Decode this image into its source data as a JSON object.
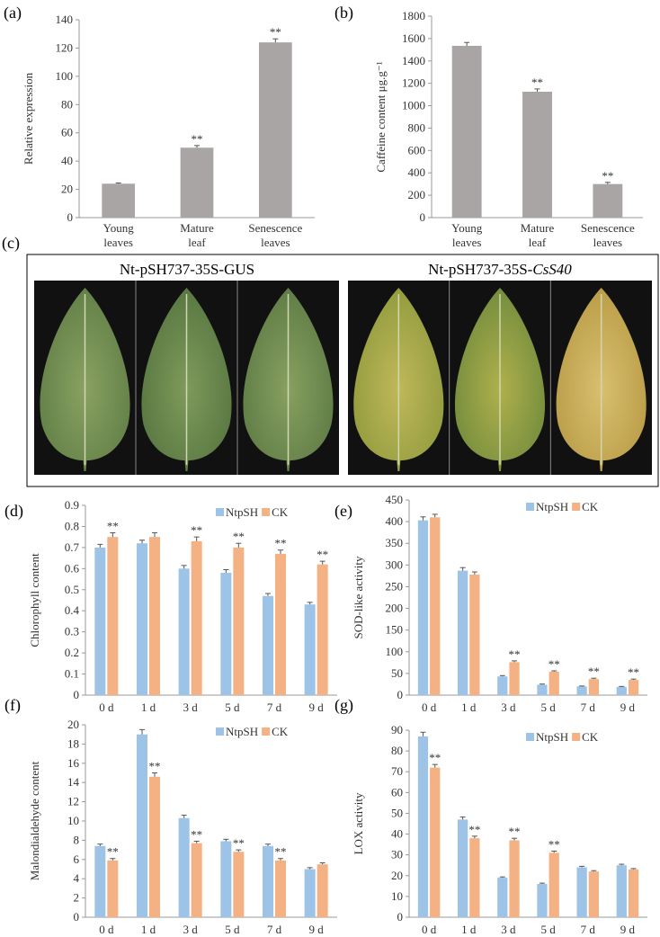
{
  "chart_data": [
    {
      "type": "bar",
      "panel_label": "(a)",
      "ylabel": "Relative expression",
      "categories": [
        [
          "Young",
          "leaves"
        ],
        [
          "Mature",
          "leaf"
        ],
        [
          "Senescence",
          "leaves"
        ]
      ],
      "values": [
        24,
        49.5,
        124
      ],
      "errors": [
        0.5,
        1.5,
        2.5
      ],
      "annotations": [
        null,
        "**",
        "**"
      ],
      "color": "#a9a5a5",
      "ylim": [
        0,
        140
      ],
      "yticks": [
        0,
        20,
        40,
        60,
        80,
        100,
        120,
        140
      ]
    },
    {
      "type": "bar",
      "panel_label": "(b)",
      "ylabel": "Caffeine content μg.g⁻¹",
      "categories": [
        [
          "Young",
          "leaves"
        ],
        [
          "Mature",
          "leaf"
        ],
        [
          "Senescence",
          "leaves"
        ]
      ],
      "values": [
        1535,
        1125,
        300
      ],
      "errors": [
        30,
        25,
        15
      ],
      "annotations": [
        null,
        "**",
        "**"
      ],
      "color": "#a9a5a5",
      "ylim": [
        0,
        1800
      ],
      "yticks": [
        0,
        200,
        400,
        600,
        800,
        1000,
        1200,
        1400,
        1600,
        1800
      ]
    },
    {
      "type": "bar",
      "panel_label": "(d)",
      "ylabel": "Chlorophyll content",
      "legend": "top-right",
      "categories": [
        "0 d",
        "1 d",
        "3 d",
        "5 d",
        "7 d",
        "9 d"
      ],
      "series": [
        {
          "name": "NtpSH",
          "color": "#9dc3e6",
          "values": [
            0.7,
            0.72,
            0.6,
            0.58,
            0.47,
            0.43
          ],
          "errors": [
            0.015,
            0.015,
            0.015,
            0.015,
            0.012,
            0.01
          ],
          "annotations": [
            null,
            null,
            null,
            null,
            null,
            null
          ]
        },
        {
          "name": "CK",
          "color": "#f4b183",
          "values": [
            0.75,
            0.75,
            0.73,
            0.7,
            0.67,
            0.62
          ],
          "errors": [
            0.02,
            0.02,
            0.02,
            0.02,
            0.018,
            0.015
          ],
          "annotations": [
            "**",
            null,
            "**",
            "**",
            "**",
            "**"
          ]
        }
      ],
      "ylim": [
        0,
        0.9
      ],
      "yticks": [
        0,
        0.1,
        0.2,
        0.3,
        0.4,
        0.5,
        0.6,
        0.7,
        0.8,
        0.9
      ]
    },
    {
      "type": "bar",
      "panel_label": "(e)",
      "ylabel": "SOD-like activity",
      "legend": "top-right",
      "categories": [
        "0 d",
        "1 d",
        "3 d",
        "5 d",
        "7 d",
        "9 d"
      ],
      "series": [
        {
          "name": "NtpSH",
          "color": "#9dc3e6",
          "values": [
            403,
            287,
            43,
            24,
            20,
            19
          ],
          "errors": [
            8,
            7,
            2,
            1.5,
            1,
            1
          ],
          "annotations": [
            null,
            null,
            null,
            null,
            null,
            null
          ]
        },
        {
          "name": "CK",
          "color": "#f4b183",
          "values": [
            410,
            278,
            76,
            54,
            37,
            35
          ],
          "errors": [
            7,
            6,
            3,
            2,
            2,
            2
          ],
          "annotations": [
            null,
            null,
            "**",
            "**",
            "**",
            "**"
          ]
        }
      ],
      "ylim": [
        0,
        450
      ],
      "yticks": [
        0,
        50,
        100,
        150,
        200,
        250,
        300,
        350,
        400,
        450
      ]
    },
    {
      "type": "bar",
      "panel_label": "(f)",
      "ylabel": "Malondialdehyde content",
      "legend": "top-right",
      "categories": [
        "0 d",
        "1 d",
        "3 d",
        "5 d",
        "7 d",
        "9 d"
      ],
      "series": [
        {
          "name": "NtpSH",
          "color": "#9dc3e6",
          "values": [
            7.4,
            19.0,
            10.3,
            7.9,
            7.4,
            5.0
          ],
          "errors": [
            0.2,
            0.5,
            0.3,
            0.2,
            0.2,
            0.15
          ],
          "annotations": [
            null,
            null,
            null,
            null,
            null,
            null
          ]
        },
        {
          "name": "CK",
          "color": "#f4b183",
          "values": [
            5.9,
            14.6,
            7.7,
            6.8,
            5.9,
            5.5
          ],
          "errors": [
            0.2,
            0.4,
            0.2,
            0.2,
            0.2,
            0.15
          ],
          "annotations": [
            "**",
            "**",
            "**",
            "**",
            "**",
            null
          ]
        }
      ],
      "ylim": [
        0,
        20
      ],
      "yticks": [
        0,
        2,
        4,
        6,
        8,
        10,
        12,
        14,
        16,
        18,
        20
      ]
    },
    {
      "type": "bar",
      "panel_label": "(g)",
      "ylabel": "LOX activity",
      "legend": "top-right",
      "categories": [
        "0 d",
        "1 d",
        "3 d",
        "5 d",
        "7 d",
        "9 d"
      ],
      "series": [
        {
          "name": "NtpSH",
          "color": "#9dc3e6",
          "values": [
            87,
            47,
            19,
            16,
            24,
            25
          ],
          "errors": [
            2,
            1.2,
            0.4,
            0.4,
            0.5,
            0.5
          ],
          "annotations": [
            null,
            null,
            null,
            null,
            null,
            null
          ]
        },
        {
          "name": "CK",
          "color": "#f4b183",
          "values": [
            72,
            38,
            37,
            31,
            22,
            23
          ],
          "errors": [
            1.5,
            1,
            1,
            0.8,
            0.4,
            0.4
          ],
          "annotations": [
            "**",
            "**",
            "**",
            "**",
            null,
            null
          ]
        }
      ],
      "ylim": [
        0,
        90
      ],
      "yticks": [
        0,
        10,
        20,
        30,
        40,
        50,
        60,
        70,
        80,
        90
      ]
    }
  ],
  "photo_panel": {
    "panel_label": "(c)",
    "left_title": "Nt-pSH737-35S-GUS",
    "right_title": {
      "prefix": "Nt-pSH737-35S-",
      "italic": "CsS40"
    }
  }
}
